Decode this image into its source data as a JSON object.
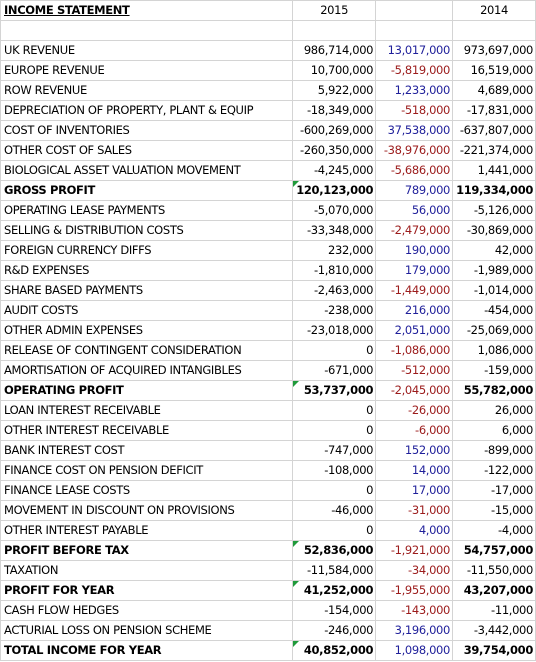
{
  "header": {
    "title": "INCOME STATEMENT",
    "col_2015": "2015",
    "col_diff": "",
    "col_2014": "2014"
  },
  "rows": [
    {
      "label": "UK REVENUE",
      "y2015": "986,714,000",
      "diff": "13,017,000",
      "y2014": "973,697,000",
      "sign": "pos",
      "bold": false
    },
    {
      "label": "EUROPE REVENUE",
      "y2015": "10,700,000",
      "diff": "-5,819,000",
      "y2014": "16,519,000",
      "sign": "neg",
      "bold": false
    },
    {
      "label": "ROW REVENUE",
      "y2015": "5,922,000",
      "diff": "1,233,000",
      "y2014": "4,689,000",
      "sign": "pos",
      "bold": false
    },
    {
      "label": "DEPRECIATION OF PROPERTY, PLANT & EQUIP",
      "y2015": "-18,349,000",
      "diff": "-518,000",
      "y2014": "-17,831,000",
      "sign": "neg",
      "bold": false
    },
    {
      "label": "COST OF INVENTORIES",
      "y2015": "-600,269,000",
      "diff": "37,538,000",
      "y2014": "-637,807,000",
      "sign": "pos",
      "bold": false
    },
    {
      "label": "OTHER COST OF SALES",
      "y2015": "-260,350,000",
      "diff": "-38,976,000",
      "y2014": "-221,374,000",
      "sign": "neg",
      "bold": false
    },
    {
      "label": "BIOLOGICAL ASSET VALUATION MOVEMENT",
      "y2015": "-4,245,000",
      "diff": "-5,686,000",
      "y2014": "1,441,000",
      "sign": "neg",
      "bold": false
    },
    {
      "label": "GROSS PROFIT",
      "y2015": "120,123,000",
      "diff": "789,000",
      "y2014": "119,334,000",
      "sign": "pos",
      "bold": true,
      "flag": true
    },
    {
      "label": "OPERATING LEASE PAYMENTS",
      "y2015": "-5,070,000",
      "diff": "56,000",
      "y2014": "-5,126,000",
      "sign": "pos",
      "bold": false
    },
    {
      "label": "SELLING & DISTRIBUTION COSTS",
      "y2015": "-33,348,000",
      "diff": "-2,479,000",
      "y2014": "-30,869,000",
      "sign": "neg",
      "bold": false
    },
    {
      "label": "FOREIGN CURRENCY DIFFS",
      "y2015": "232,000",
      "diff": "190,000",
      "y2014": "42,000",
      "sign": "pos",
      "bold": false
    },
    {
      "label": "R&D EXPENSES",
      "y2015": "-1,810,000",
      "diff": "179,000",
      "y2014": "-1,989,000",
      "sign": "pos",
      "bold": false
    },
    {
      "label": "SHARE BASED PAYMENTS",
      "y2015": "-2,463,000",
      "diff": "-1,449,000",
      "y2014": "-1,014,000",
      "sign": "neg",
      "bold": false
    },
    {
      "label": "AUDIT COSTS",
      "y2015": "-238,000",
      "diff": "216,000",
      "y2014": "-454,000",
      "sign": "pos",
      "bold": false
    },
    {
      "label": "OTHER ADMIN EXPENSES",
      "y2015": "-23,018,000",
      "diff": "2,051,000",
      "y2014": "-25,069,000",
      "sign": "pos",
      "bold": false
    },
    {
      "label": "RELEASE OF CONTINGENT CONSIDERATION",
      "y2015": "0",
      "diff": "-1,086,000",
      "y2014": "1,086,000",
      "sign": "neg",
      "bold": false
    },
    {
      "label": "AMORTISATION OF ACQUIRED INTANGIBLES",
      "y2015": "-671,000",
      "diff": "-512,000",
      "y2014": "-159,000",
      "sign": "neg",
      "bold": false
    },
    {
      "label": "OPERATING PROFIT",
      "y2015": "53,737,000",
      "diff": "-2,045,000",
      "y2014": "55,782,000",
      "sign": "neg",
      "bold": true,
      "flag": true
    },
    {
      "label": "LOAN INTEREST RECEIVABLE",
      "y2015": "0",
      "diff": "-26,000",
      "y2014": "26,000",
      "sign": "neg",
      "bold": false
    },
    {
      "label": "OTHER INTEREST RECEIVABLE",
      "y2015": "0",
      "diff": "-6,000",
      "y2014": "6,000",
      "sign": "neg",
      "bold": false
    },
    {
      "label": "BANK INTEREST COST",
      "y2015": "-747,000",
      "diff": "152,000",
      "y2014": "-899,000",
      "sign": "pos",
      "bold": false
    },
    {
      "label": "FINANCE COST ON PENSION DEFICIT",
      "y2015": "-108,000",
      "diff": "14,000",
      "y2014": "-122,000",
      "sign": "pos",
      "bold": false
    },
    {
      "label": "FINANCE LEASE COSTS",
      "y2015": "0",
      "diff": "17,000",
      "y2014": "-17,000",
      "sign": "pos",
      "bold": false
    },
    {
      "label": "MOVEMENT IN DISCOUNT ON PROVISIONS",
      "y2015": "-46,000",
      "diff": "-31,000",
      "y2014": "-15,000",
      "sign": "neg",
      "bold": false
    },
    {
      "label": "OTHER INTEREST PAYABLE",
      "y2015": "0",
      "diff": "4,000",
      "y2014": "-4,000",
      "sign": "pos",
      "bold": false
    },
    {
      "label": "PROFIT BEFORE TAX",
      "y2015": "52,836,000",
      "diff": "-1,921,000",
      "y2014": "54,757,000",
      "sign": "neg",
      "bold": true,
      "flag": true
    },
    {
      "label": "TAXATION",
      "y2015": "-11,584,000",
      "diff": "-34,000",
      "y2014": "-11,550,000",
      "sign": "neg",
      "bold": false
    },
    {
      "label": "PROFIT FOR YEAR",
      "y2015": "41,252,000",
      "diff": "-1,955,000",
      "y2014": "43,207,000",
      "sign": "neg",
      "bold": true,
      "flag": true
    },
    {
      "label": "CASH FLOW HEDGES",
      "y2015": "-154,000",
      "diff": "-143,000",
      "y2014": "-11,000",
      "sign": "neg",
      "bold": false
    },
    {
      "label": "ACTURIAL LOSS ON PENSION SCHEME",
      "y2015": "-246,000",
      "diff": "3,196,000",
      "y2014": "-3,442,000",
      "sign": "pos",
      "bold": false
    },
    {
      "label": "TOTAL INCOME FOR YEAR",
      "y2015": "40,852,000",
      "diff": "1,098,000",
      "y2014": "39,754,000",
      "sign": "pos",
      "bold": true,
      "flag": true
    }
  ],
  "colors": {
    "positive_diff": "#1f1f9a",
    "negative_diff": "#9b1b1b",
    "gridline": "#d4d4d4",
    "error_flag": "#1f9a3a"
  }
}
